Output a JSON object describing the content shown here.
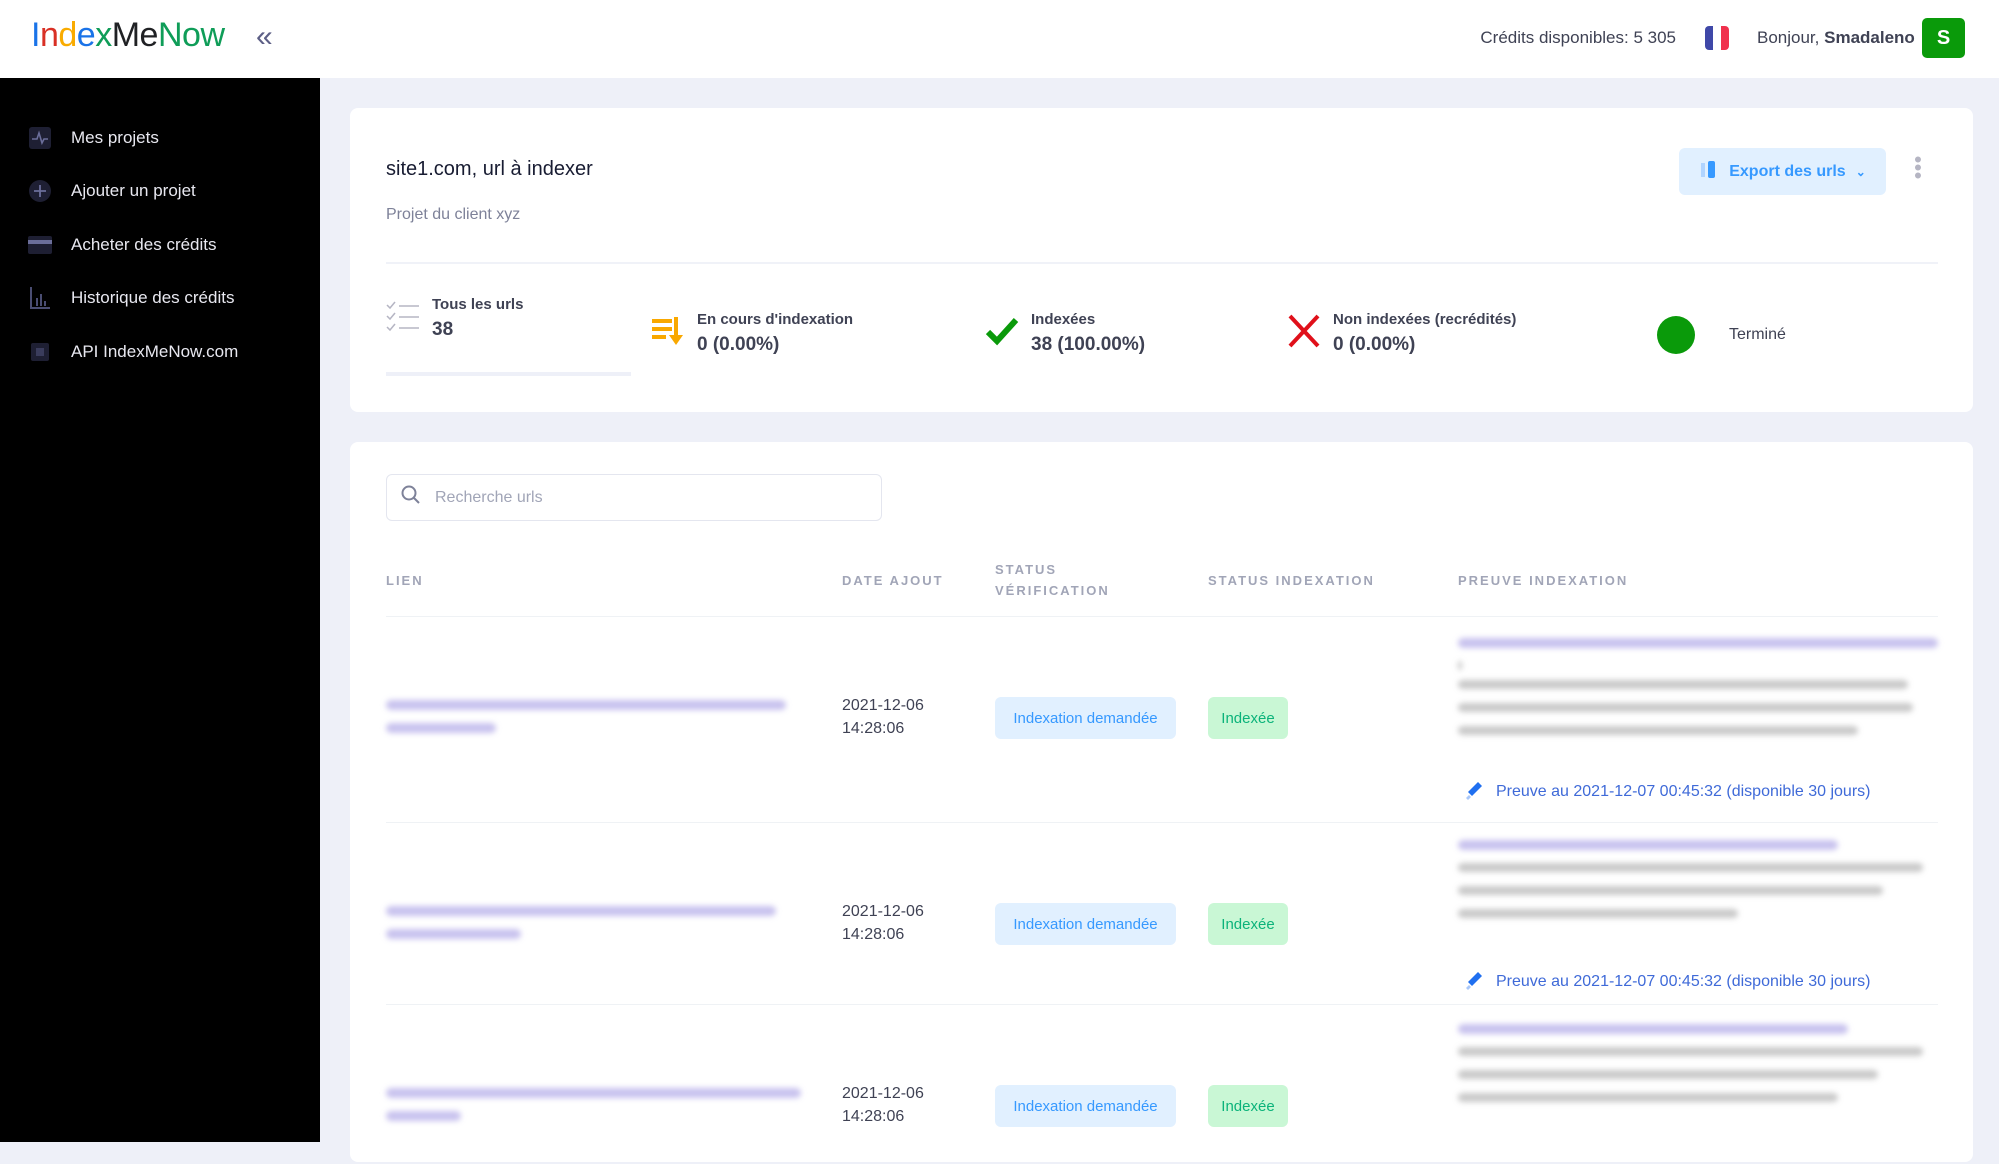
{
  "header": {
    "logo": "IndexMeNow",
    "logo_letter_colors": [
      "#1a73e8",
      "#d93025",
      "#f9ab00",
      "#1a73e8",
      "#0f9d58",
      "#202124",
      "#202124",
      "#0f9d58",
      "#0f9d58",
      "#0f9d58"
    ],
    "credits": "Crédits disponibles: 5 305",
    "greeting": "Bonjour,",
    "username": "Smadaleno",
    "avatar_initial": "S",
    "flag": "france-flag"
  },
  "sidebar": {
    "items": [
      {
        "label": "Mes projets",
        "icon": "activity-icon"
      },
      {
        "label": "Ajouter un projet",
        "icon": "plus-circle-icon"
      },
      {
        "label": "Acheter des crédits",
        "icon": "credit-card-icon"
      },
      {
        "label": "Historique des crédits",
        "icon": "bar-chart-icon"
      },
      {
        "label": "API IndexMeNow.com",
        "icon": "chip-icon"
      }
    ]
  },
  "project": {
    "title": "site1.com, url à indexer",
    "subtitle": "Projet du client xyz",
    "export_label": "Export des urls",
    "stats": [
      {
        "label": "Tous les urls",
        "value": "38"
      },
      {
        "label": "En cours d'indexation",
        "value": "0 (0.00%)"
      },
      {
        "label": "Indexées",
        "value": "38 (100.00%)"
      },
      {
        "label": "Non indexées (recrédités)",
        "value": "0 (0.00%)"
      }
    ],
    "status": "Terminé",
    "status_color": "#0a9a0a"
  },
  "table": {
    "search_placeholder": "Recherche urls",
    "columns": [
      "LIEN",
      "DATE AJOUT",
      "STATUS",
      "VÉRIFICATION",
      "STATUS INDEXATION",
      "PREUVE INDEXATION"
    ],
    "rows": [
      {
        "date": "2021-12-06",
        "time": "14:28:06",
        "verification": "Indexation demandée",
        "indexation": "Indexée",
        "proof": "Preuve au 2021-12-07 00:45:32 (disponible 30 jours)"
      },
      {
        "date": "2021-12-06",
        "time": "14:28:06",
        "verification": "Indexation demandée",
        "indexation": "Indexée",
        "proof": "Preuve au 2021-12-07 00:45:32 (disponible 30 jours)"
      },
      {
        "date": "2021-12-06",
        "time": "14:28:06",
        "verification": "Indexation demandée",
        "indexation": "Indexée"
      }
    ]
  }
}
